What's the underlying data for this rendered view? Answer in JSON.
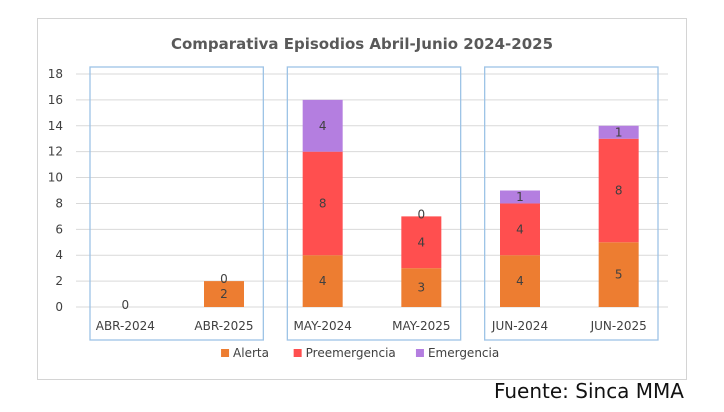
{
  "chart_data": {
    "type": "bar",
    "stacked": true,
    "title": "Comparativa Episodios Abril-Junio 2024-2025",
    "categories": [
      "ABR-2024",
      "ABR-2025",
      "MAY-2024",
      "MAY-2025",
      "JUN-2024",
      "JUN-2025"
    ],
    "series": [
      {
        "name": "Alerta",
        "color": "#ED7D31",
        "values": [
          0,
          2,
          4,
          3,
          4,
          5
        ],
        "labels": [
          "0",
          "2",
          "4",
          "3",
          "4",
          "5"
        ]
      },
      {
        "name": "Preemergencia",
        "color": "#FF4F4F",
        "values": [
          0,
          0,
          8,
          4,
          4,
          8
        ],
        "labels": [
          "",
          "0",
          "8",
          "4",
          "4",
          "8"
        ]
      },
      {
        "name": "Emergencia",
        "color": "#B47EE0",
        "values": [
          0,
          0,
          4,
          0,
          1,
          1
        ],
        "labels": [
          "",
          "",
          "4",
          "0",
          "1",
          "1"
        ]
      }
    ],
    "yticks": [
      "0",
      "2",
      "4",
      "6",
      "8",
      "10",
      "12",
      "14",
      "16",
      "18"
    ],
    "ylim": [
      0,
      18
    ],
    "grid": true,
    "legend_position": "bottom",
    "group_box_color": "#9DC3E6"
  },
  "source": "Fuente: Sinca MMA"
}
